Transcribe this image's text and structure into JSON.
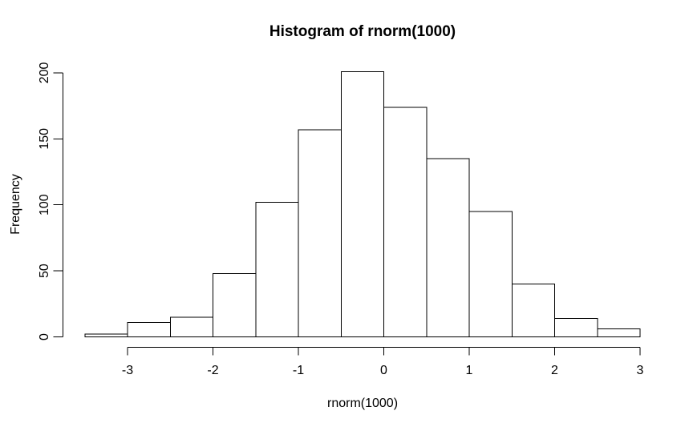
{
  "figure": {
    "title": "Histogram of rnorm(1000)",
    "xlabel": "rnorm(1000)",
    "ylabel": "Frequency"
  },
  "chart_data": {
    "type": "bar",
    "subtype": "histogram",
    "title": "Histogram of rnorm(1000)",
    "xlabel": "rnorm(1000)",
    "ylabel": "Frequency",
    "bin_edges": [
      -3.5,
      -3.0,
      -2.5,
      -2.0,
      -1.5,
      -1.0,
      -0.5,
      0.0,
      0.5,
      1.0,
      1.5,
      2.0,
      2.5,
      3.0
    ],
    "counts": [
      2,
      11,
      15,
      48,
      102,
      157,
      201,
      174,
      135,
      95,
      40,
      14,
      6
    ],
    "x_ticks": [
      -3,
      -2,
      -1,
      0,
      1,
      2,
      3
    ],
    "y_ticks": [
      0,
      50,
      100,
      150,
      200
    ],
    "xlim": [
      -3.5,
      3.0
    ],
    "ylim": [
      0,
      201
    ],
    "grid": false,
    "legend": false,
    "bar_fill": "#ffffff",
    "line_color": "#000000",
    "background": "#ffffff"
  }
}
